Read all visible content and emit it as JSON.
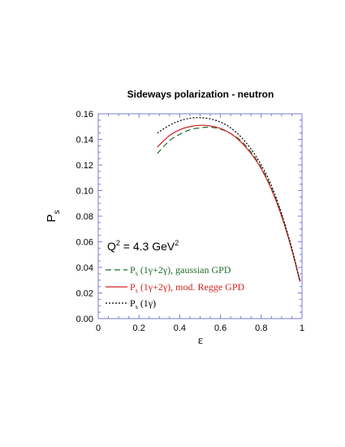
{
  "chart_data": {
    "type": "line",
    "title": "Sideways polarization - neutron",
    "xlabel": "ε",
    "ylabel": {
      "main": "P",
      "sub": "s"
    },
    "xlim": [
      0,
      1
    ],
    "ylim": [
      0,
      0.16
    ],
    "x_ticks": [
      0,
      0.2,
      0.4,
      0.6,
      0.8,
      1
    ],
    "x_tick_labels": [
      "0",
      "0.2",
      "0.4",
      "0.6",
      "0.8",
      "1"
    ],
    "y_ticks": [
      0,
      0.02,
      0.04,
      0.06,
      0.08,
      0.1,
      0.12,
      0.14,
      0.16
    ],
    "y_tick_labels": [
      "0.00",
      "0.02",
      "0.04",
      "0.06",
      "0.08",
      "0.10",
      "0.12",
      "0.14",
      "0.16"
    ],
    "grid": false,
    "annotation": {
      "text": "Q",
      "sup1": "2",
      "mid": " = 4.3 GeV",
      "sup2": "2"
    },
    "legend_position": "bottom-left",
    "series": [
      {
        "key": "gaussian",
        "legend": {
          "main": "P",
          "sub": "s",
          "rest": " (1γ+2γ), gaussian GPD"
        },
        "color": "#1e6b2e",
        "dash": "7,4",
        "x": [
          0.29,
          0.35,
          0.4,
          0.45,
          0.5,
          0.55,
          0.6,
          0.65,
          0.7,
          0.75,
          0.8,
          0.85,
          0.9,
          0.95,
          0.99
        ],
        "y": [
          0.129,
          0.139,
          0.144,
          0.1475,
          0.149,
          0.1495,
          0.148,
          0.1445,
          0.139,
          0.13,
          0.118,
          0.102,
          0.081,
          0.054,
          0.029
        ]
      },
      {
        "key": "regge",
        "legend": {
          "main": "P",
          "sub": "s",
          "rest": " (1γ+2γ), mod. Regge GPD"
        },
        "color": "#d42020",
        "dash": "",
        "x": [
          0.29,
          0.35,
          0.4,
          0.45,
          0.5,
          0.55,
          0.6,
          0.65,
          0.7,
          0.75,
          0.8,
          0.85,
          0.9,
          0.95,
          0.99
        ],
        "y": [
          0.134,
          0.143,
          0.1475,
          0.15,
          0.151,
          0.1505,
          0.1485,
          0.1445,
          0.138,
          0.129,
          0.117,
          0.101,
          0.08,
          0.054,
          0.029
        ]
      },
      {
        "key": "onegamma",
        "legend": {
          "main": "P",
          "sub": "s",
          "rest": " (1γ)"
        },
        "color": "#000000",
        "dash": "2,2",
        "x": [
          0.29,
          0.35,
          0.4,
          0.45,
          0.5,
          0.55,
          0.6,
          0.65,
          0.7,
          0.75,
          0.8,
          0.85,
          0.9,
          0.95,
          0.99
        ],
        "y": [
          0.145,
          0.151,
          0.1545,
          0.1565,
          0.157,
          0.156,
          0.1535,
          0.149,
          0.142,
          0.1325,
          0.12,
          0.104,
          0.082,
          0.055,
          0.029
        ]
      }
    ]
  }
}
